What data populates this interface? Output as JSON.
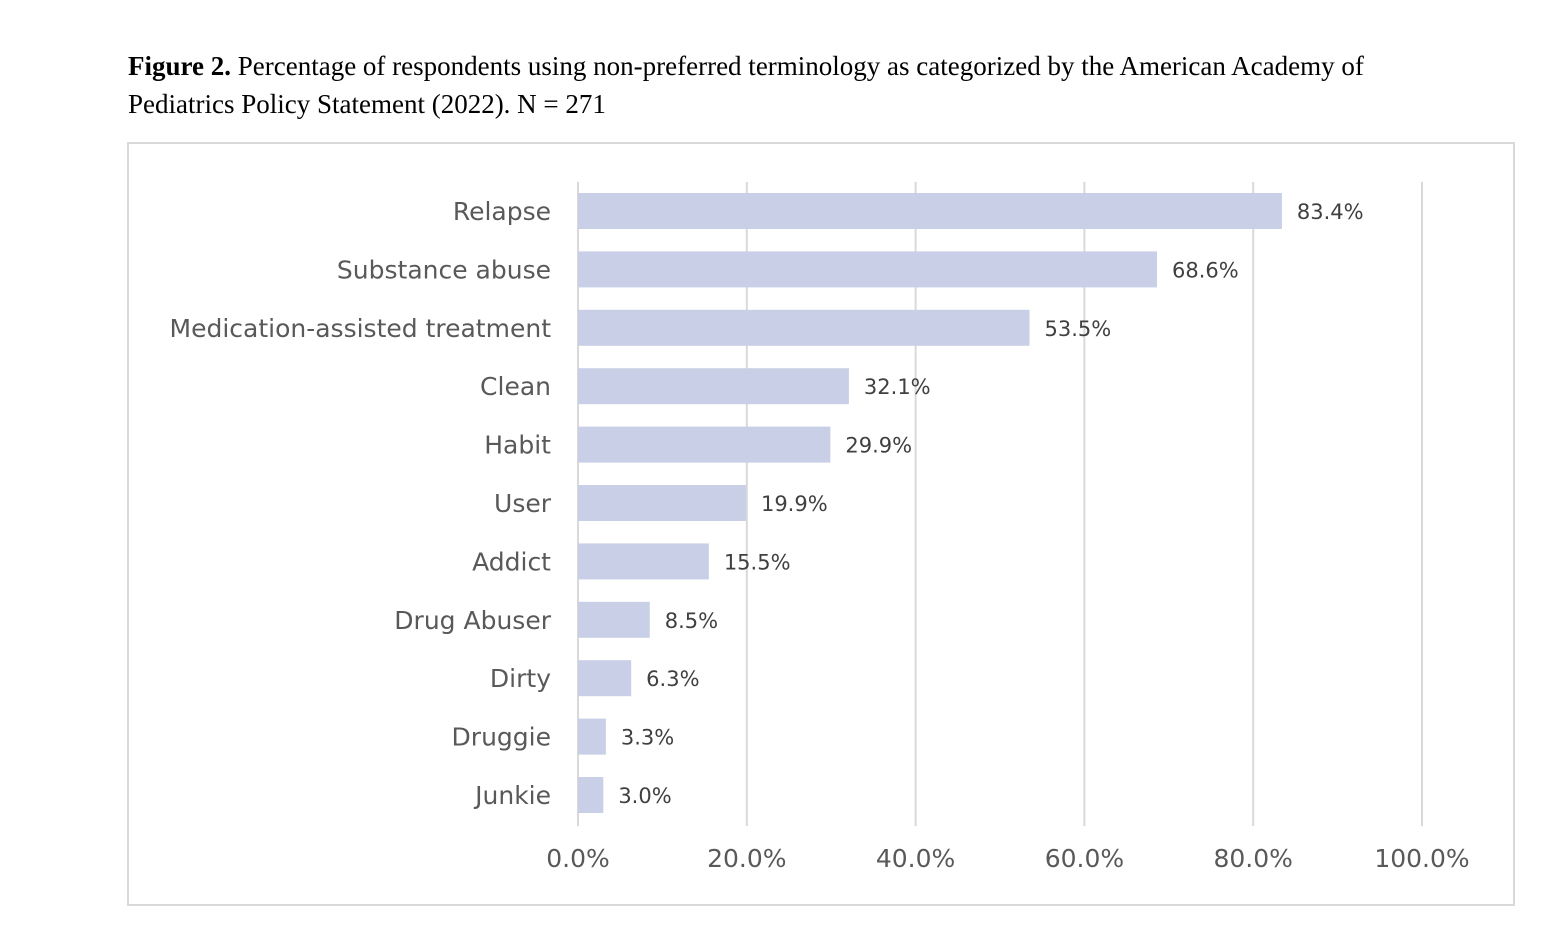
{
  "caption": {
    "figure_label": "Figure 2.",
    "text": " Percentage of respondents using non-preferred terminology as categorized by the American Academy of Pediatrics Policy Statement (2022). N = 271"
  },
  "colors": {
    "bar": "#c8cfe6",
    "grid": "#d9d9d9",
    "axis_text": "#595959",
    "label_text": "#404040"
  },
  "chart_data": {
    "type": "bar",
    "orientation": "horizontal",
    "categories": [
      "Relapse",
      "Substance abuse",
      "Medication-assisted treatment",
      "Clean",
      "Habit",
      "User",
      "Addict",
      "Drug Abuser",
      "Dirty",
      "Druggie",
      "Junkie"
    ],
    "values": [
      83.4,
      68.6,
      53.5,
      32.1,
      29.9,
      19.9,
      15.5,
      8.5,
      6.3,
      3.3,
      3.0
    ],
    "data_labels": [
      "83.4%",
      "68.6%",
      "53.5%",
      "32.1%",
      "29.9%",
      "19.9%",
      "15.5%",
      "8.5%",
      "6.3%",
      "3.3%",
      "3.0%"
    ],
    "xlim": [
      0,
      100
    ],
    "x_ticks": [
      0,
      20,
      40,
      60,
      80,
      100
    ],
    "x_tick_labels": [
      "0.0%",
      "20.0%",
      "40.0%",
      "60.0%",
      "80.0%",
      "100.0%"
    ],
    "grid": "vertical",
    "legend": "none"
  }
}
